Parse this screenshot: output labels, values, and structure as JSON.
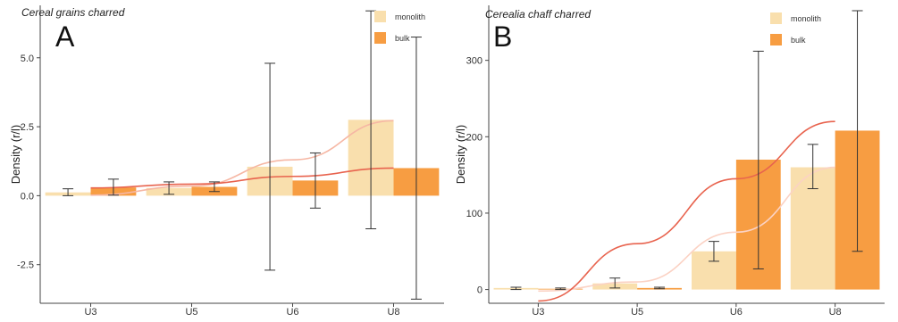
{
  "chart_data": [
    {
      "type": "bar",
      "panel_label": "A",
      "title": "Cereal grains charred",
      "ylabel": "Density (r/l)",
      "xlabel": "",
      "categories": [
        "U3",
        "U5",
        "U6",
        "U8"
      ],
      "ylim": [
        -3.9,
        6.9
      ],
      "yticks": [
        "5.0",
        "2.5",
        "0.0",
        "-2.5"
      ],
      "ytick_values": [
        5.0,
        2.5,
        0.0,
        -2.5
      ],
      "grid": false,
      "legend_position": "top-right",
      "series": [
        {
          "name": "monolith",
          "color": "#f9dfad",
          "values": [
            0.12,
            0.28,
            1.05,
            2.75
          ],
          "err_low": [
            0.0,
            0.05,
            -2.7,
            -1.2
          ],
          "err_high": [
            0.25,
            0.5,
            4.8,
            6.7
          ],
          "trend_color": "#f6b7a4",
          "trend": [
            0.02,
            0.35,
            1.3,
            2.72
          ]
        },
        {
          "name": "bulk",
          "color": "#f79d42",
          "values": [
            0.3,
            0.32,
            0.55,
            1.0
          ],
          "err_low": [
            0.02,
            0.15,
            -0.45,
            -3.75
          ],
          "err_high": [
            0.6,
            0.5,
            1.55,
            5.75
          ],
          "trend_color": "#e8634e",
          "trend": [
            0.28,
            0.42,
            0.7,
            1.0
          ]
        }
      ]
    },
    {
      "type": "bar",
      "panel_label": "B",
      "title": "Cerealia chaff charred",
      "ylabel": "Density (r/l)",
      "xlabel": "",
      "categories": [
        "U3",
        "U5",
        "U6",
        "U8"
      ],
      "ylim": [
        -18,
        372
      ],
      "yticks": [
        "300",
        "200",
        "100",
        "0"
      ],
      "ytick_values": [
        300,
        200,
        100,
        0
      ],
      "grid": false,
      "legend_position": "top-right",
      "series": [
        {
          "name": "monolith",
          "color": "#f9dfad",
          "values": [
            2,
            8,
            50,
            160
          ],
          "err_low": [
            0,
            2,
            37,
            132
          ],
          "err_high": [
            3,
            15,
            63,
            190
          ],
          "trend_color": "#fbd2c4",
          "trend": [
            -2,
            10,
            75,
            160
          ]
        },
        {
          "name": "bulk",
          "color": "#f79d42",
          "values": [
            1,
            2,
            170,
            208
          ],
          "err_low": [
            0,
            1,
            27,
            50
          ],
          "err_high": [
            2,
            3,
            312,
            365
          ],
          "trend_color": "#e8634e",
          "trend": [
            -15,
            60,
            145,
            220
          ]
        }
      ]
    }
  ]
}
